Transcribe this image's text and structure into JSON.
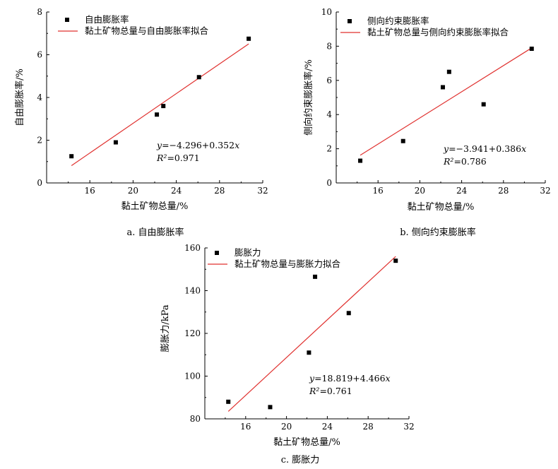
{
  "chart_data": [
    {
      "type": "scatter",
      "caption": "a. 自由膨胀率",
      "xlabel": "黏土矿物总量/%",
      "ylabel": "自由膨胀率/%",
      "xlim": [
        12,
        32
      ],
      "ylim": [
        0,
        8
      ],
      "xticks": [
        "16",
        "20",
        "24",
        "28",
        "32"
      ],
      "yticks": [
        "0",
        "2",
        "4",
        "6",
        "8"
      ],
      "legend_position": "top-left",
      "series": [
        {
          "name": "自由膨胀率",
          "marker": "square",
          "color": "#000000",
          "x": [
            14.3,
            18.4,
            22.2,
            22.8,
            26.1,
            30.7
          ],
          "y": [
            1.25,
            1.9,
            3.2,
            3.6,
            4.95,
            6.75
          ]
        },
        {
          "name": "黏土矿物总量与自由膨胀率拟合",
          "line": true,
          "color": "#e0312f",
          "x": [
            14.3,
            30.7
          ],
          "y": [
            0.81,
            6.51
          ]
        }
      ],
      "equation": {
        "y_label": "y",
        "rhs": "=−4.296+0.352",
        "x_label": "x",
        "r2_label": "R²",
        "r2_value": "=0.971"
      }
    },
    {
      "type": "scatter",
      "caption": "b. 侧向约束膨胀率",
      "xlabel": "黏土矿物总量/%",
      "ylabel": "侧向约束膨胀率/%",
      "xlim": [
        12,
        32
      ],
      "ylim": [
        0,
        10
      ],
      "xticks": [
        "16",
        "20",
        "24",
        "28",
        "32"
      ],
      "yticks": [
        "0",
        "2",
        "4",
        "6",
        "8",
        "10"
      ],
      "legend_position": "top-left",
      "series": [
        {
          "name": "侧向约束膨胀率",
          "marker": "square",
          "color": "#000000",
          "x": [
            14.3,
            18.4,
            22.2,
            22.8,
            26.1,
            30.7
          ],
          "y": [
            1.3,
            2.45,
            5.6,
            6.5,
            4.6,
            7.85
          ]
        },
        {
          "name": "黏土矿物总量与侧向约束膨胀率拟合",
          "line": true,
          "color": "#e0312f",
          "x": [
            14.3,
            30.7
          ],
          "y": [
            1.62,
            7.9
          ]
        }
      ],
      "equation": {
        "y_label": "y",
        "rhs": "=−3.941+0.386",
        "x_label": "x",
        "r2_label": "R²",
        "r2_value": "=0.786"
      }
    },
    {
      "type": "scatter",
      "caption": "c. 膨胀力",
      "xlabel": "黏土矿物总量/%",
      "ylabel": "膨胀力/kPa",
      "xlim": [
        12,
        32
      ],
      "ylim": [
        80,
        160
      ],
      "xticks": [
        "16",
        "20",
        "24",
        "28",
        "32"
      ],
      "yticks": [
        "80",
        "100",
        "120",
        "140",
        "160"
      ],
      "legend_position": "top-left",
      "series": [
        {
          "name": "膨胀力",
          "marker": "square",
          "color": "#000000",
          "x": [
            14.3,
            18.4,
            22.2,
            22.8,
            26.1,
            30.7
          ],
          "y": [
            88,
            85.5,
            111,
            146.5,
            129.5,
            154
          ]
        },
        {
          "name": "黏土矿物总量与膨胀力拟合",
          "line": true,
          "color": "#e0312f",
          "x": [
            14.3,
            30.7
          ],
          "y": [
            83.5,
            156
          ]
        }
      ],
      "equation": {
        "y_label": "y",
        "rhs": "=18.819+4.466",
        "x_label": "x",
        "r2_label": "R²",
        "r2_value": "=0.761"
      }
    }
  ]
}
